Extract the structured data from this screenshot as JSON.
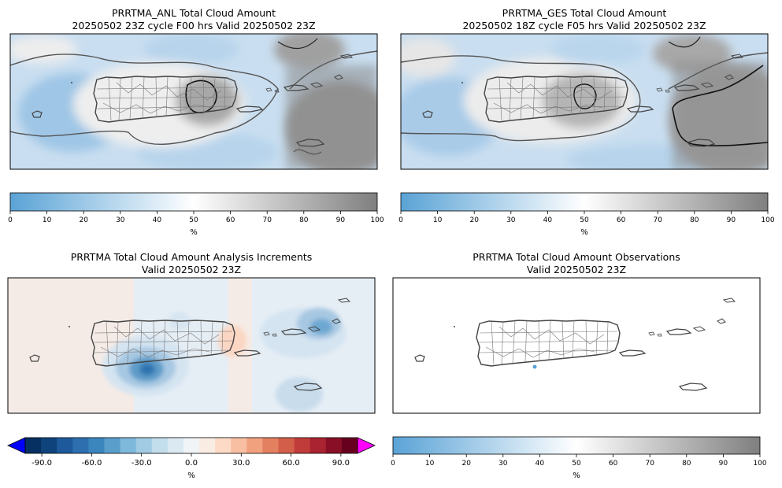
{
  "chart_data": [
    {
      "type": "heatmap",
      "id": "anl",
      "title_line1": "PRRTMA_ANL Total Cloud Amount",
      "title_line2": "20250502 23Z cycle F00 hrs Valid 20250502 23Z",
      "colorbar": {
        "min": 0,
        "max": 100,
        "ticks": [
          "0",
          "10",
          "20",
          "30",
          "40",
          "50",
          "60",
          "70",
          "80",
          "90",
          "100"
        ],
        "label": "%"
      }
    },
    {
      "type": "heatmap",
      "id": "ges",
      "title_line1": "PRRTMA_GES Total Cloud Amount",
      "title_line2": "20250502 18Z cycle F05 hrs Valid 20250502 23Z",
      "colorbar": {
        "min": 0,
        "max": 100,
        "ticks": [
          "0",
          "10",
          "20",
          "30",
          "40",
          "50",
          "60",
          "70",
          "80",
          "90",
          "100"
        ],
        "label": "%"
      }
    },
    {
      "type": "heatmap",
      "id": "inc",
      "title_line1": "PRRTMA Total Cloud Amount Analysis Increments",
      "title_line2": "Valid 20250502 23Z",
      "colorbar": {
        "min": -100,
        "max": 100,
        "ticks": [
          "-90.0",
          "-60.0",
          "-30.0",
          "0.0",
          "30.0",
          "60.0",
          "90.0"
        ],
        "tick_values": [
          -90,
          -60,
          -30,
          0,
          30,
          60,
          90
        ],
        "label": "%",
        "extend": "both"
      }
    },
    {
      "type": "heatmap",
      "id": "obs",
      "title_line1": "PRRTMA Total Cloud Amount Observations",
      "title_line2": "Valid 20250502 23Z",
      "colorbar": {
        "min": 0,
        "max": 100,
        "ticks": [
          "0",
          "10",
          "20",
          "30",
          "40",
          "50",
          "60",
          "70",
          "80",
          "90",
          "100"
        ],
        "label": "%"
      }
    }
  ],
  "colors": {
    "cloud_low": "#5aa3d6",
    "cloud_mid": "#ffffff",
    "cloud_high": "#7f7f7f",
    "inc_low": "#053061",
    "inc_high": "#67001f",
    "under": "#0000ff",
    "over": "#ff00ff"
  }
}
